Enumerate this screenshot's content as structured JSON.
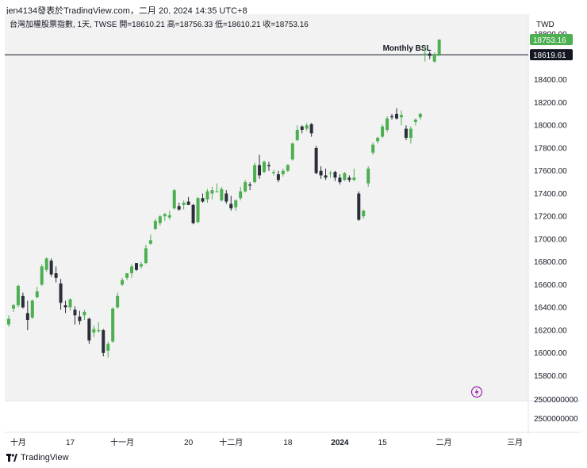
{
  "header": {
    "title": "jen4134發表於TradingView.com，二月 20, 2024 14:35 UTC+8"
  },
  "footer": {
    "brand": "TradingView",
    "icon": "tradingview-logo-icon"
  },
  "chart_data": {
    "type": "candlestick",
    "legend": "台灣加權股票指數, 1天, TWSE  開=18610.21  高=18756.33  低=18610.21  收=18753.16",
    "currency_label": "TWD",
    "ylim": [
      15650,
      18920
    ],
    "y_ticks": [
      15800,
      16000,
      16200,
      16400,
      16600,
      16800,
      17000,
      17200,
      17400,
      17600,
      17800,
      18000,
      18200,
      18400,
      18600,
      18800
    ],
    "y_tick_labels": [
      "15800.00",
      "16000.00",
      "16200.00",
      "16400.00",
      "16600.00",
      "16800.00",
      "17000.00",
      "17200.00",
      "17400.00",
      "17600.00",
      "17800.00",
      "18000.00",
      "18200.00",
      "18400.00",
      "18600.00",
      "18800.00"
    ],
    "x_tick_labels": [
      {
        "label": "十月",
        "i": 2
      },
      {
        "label": "17",
        "i": 13
      },
      {
        "label": "十一月",
        "i": 24
      },
      {
        "label": "20",
        "i": 38
      },
      {
        "label": "十二月",
        "i": 47
      },
      {
        "label": "18",
        "i": 59
      },
      {
        "label": "2024",
        "i": 70
      },
      {
        "label": "15",
        "i": 79
      },
      {
        "label": "二月",
        "i": 92
      },
      {
        "label": "三月",
        "i": 107
      }
    ],
    "volume_labels": [
      "2500000000",
      "2500000000"
    ],
    "price_tags": [
      {
        "value": 18753.16,
        "label": "18753.16",
        "color": "#4caf50"
      },
      {
        "value": 18619.61,
        "label": "18619.61",
        "color": "#131722"
      }
    ],
    "level_line": {
      "value": 18619.61,
      "label": "Monthly BSL"
    },
    "up_color": "#4caf50",
    "down_color": "#2a2e39",
    "candles": [
      {
        "o": 16250,
        "h": 16330,
        "l": 16230,
        "c": 16300
      },
      {
        "o": 16390,
        "h": 16430,
        "l": 16360,
        "c": 16420
      },
      {
        "o": 16420,
        "h": 16600,
        "l": 16400,
        "c": 16590
      },
      {
        "o": 16500,
        "h": 16530,
        "l": 16390,
        "c": 16400
      },
      {
        "o": 16350,
        "h": 16460,
        "l": 16200,
        "c": 16290
      },
      {
        "o": 16310,
        "h": 16470,
        "l": 16300,
        "c": 16460
      },
      {
        "o": 16490,
        "h": 16580,
        "l": 16480,
        "c": 16540
      },
      {
        "o": 16600,
        "h": 16780,
        "l": 16590,
        "c": 16760
      },
      {
        "o": 16730,
        "h": 16840,
        "l": 16710,
        "c": 16830
      },
      {
        "o": 16810,
        "h": 16830,
        "l": 16670,
        "c": 16690
      },
      {
        "o": 16700,
        "h": 16760,
        "l": 16620,
        "c": 16660
      },
      {
        "o": 16610,
        "h": 16650,
        "l": 16380,
        "c": 16440
      },
      {
        "o": 16420,
        "h": 16460,
        "l": 16350,
        "c": 16400
      },
      {
        "o": 16400,
        "h": 16480,
        "l": 16370,
        "c": 16470
      },
      {
        "o": 16380,
        "h": 16410,
        "l": 16250,
        "c": 16330
      },
      {
        "o": 16320,
        "h": 16370,
        "l": 16250,
        "c": 16280
      },
      {
        "o": 16330,
        "h": 16380,
        "l": 16290,
        "c": 16360
      },
      {
        "o": 16300,
        "h": 16310,
        "l": 16080,
        "c": 16110
      },
      {
        "o": 16180,
        "h": 16240,
        "l": 16140,
        "c": 16210
      },
      {
        "o": 16190,
        "h": 16270,
        "l": 16180,
        "c": 16200
      },
      {
        "o": 16200,
        "h": 16210,
        "l": 15970,
        "c": 16000
      },
      {
        "o": 16020,
        "h": 16100,
        "l": 15960,
        "c": 16080
      },
      {
        "o": 16100,
        "h": 16400,
        "l": 16090,
        "c": 16390
      },
      {
        "o": 16400,
        "h": 16530,
        "l": 16390,
        "c": 16500
      },
      {
        "o": 16600,
        "h": 16660,
        "l": 16590,
        "c": 16640
      },
      {
        "o": 16660,
        "h": 16700,
        "l": 16640,
        "c": 16700
      },
      {
        "o": 16700,
        "h": 16780,
        "l": 16660,
        "c": 16760
      },
      {
        "o": 16790,
        "h": 16790,
        "l": 16720,
        "c": 16730
      },
      {
        "o": 16760,
        "h": 16800,
        "l": 16740,
        "c": 16780
      },
      {
        "o": 16790,
        "h": 16950,
        "l": 16780,
        "c": 16920
      },
      {
        "o": 16960,
        "h": 17040,
        "l": 16950,
        "c": 16990
      },
      {
        "o": 17090,
        "h": 17180,
        "l": 17080,
        "c": 17160
      },
      {
        "o": 17140,
        "h": 17210,
        "l": 17120,
        "c": 17200
      },
      {
        "o": 17200,
        "h": 17230,
        "l": 17160,
        "c": 17220
      },
      {
        "o": 17190,
        "h": 17250,
        "l": 17170,
        "c": 17210
      },
      {
        "o": 17270,
        "h": 17440,
        "l": 17260,
        "c": 17430
      },
      {
        "o": 17290,
        "h": 17320,
        "l": 17250,
        "c": 17260
      },
      {
        "o": 17300,
        "h": 17340,
        "l": 17260,
        "c": 17320
      },
      {
        "o": 17330,
        "h": 17370,
        "l": 17300,
        "c": 17300
      },
      {
        "o": 17300,
        "h": 17310,
        "l": 17130,
        "c": 17140
      },
      {
        "o": 17150,
        "h": 17370,
        "l": 17140,
        "c": 17360
      },
      {
        "o": 17360,
        "h": 17400,
        "l": 17320,
        "c": 17330
      },
      {
        "o": 17350,
        "h": 17440,
        "l": 17320,
        "c": 17420
      },
      {
        "o": 17400,
        "h": 17460,
        "l": 17350,
        "c": 17430
      },
      {
        "o": 17420,
        "h": 17490,
        "l": 17410,
        "c": 17420
      },
      {
        "o": 17340,
        "h": 17460,
        "l": 17330,
        "c": 17440
      },
      {
        "o": 17400,
        "h": 17430,
        "l": 17310,
        "c": 17330
      },
      {
        "o": 17310,
        "h": 17380,
        "l": 17250,
        "c": 17270
      },
      {
        "o": 17280,
        "h": 17350,
        "l": 17250,
        "c": 17340
      },
      {
        "o": 17360,
        "h": 17460,
        "l": 17340,
        "c": 17420
      },
      {
        "o": 17420,
        "h": 17520,
        "l": 17410,
        "c": 17500
      },
      {
        "o": 17480,
        "h": 17500,
        "l": 17430,
        "c": 17470
      },
      {
        "o": 17500,
        "h": 17670,
        "l": 17490,
        "c": 17650
      },
      {
        "o": 17650,
        "h": 17740,
        "l": 17530,
        "c": 17560
      },
      {
        "o": 17590,
        "h": 17690,
        "l": 17580,
        "c": 17680
      },
      {
        "o": 17650,
        "h": 17680,
        "l": 17600,
        "c": 17640
      },
      {
        "o": 17580,
        "h": 17610,
        "l": 17560,
        "c": 17590
      },
      {
        "o": 17570,
        "h": 17600,
        "l": 17500,
        "c": 17520
      },
      {
        "o": 17570,
        "h": 17620,
        "l": 17550,
        "c": 17600
      },
      {
        "o": 17600,
        "h": 17660,
        "l": 17590,
        "c": 17650
      },
      {
        "o": 17700,
        "h": 17850,
        "l": 17690,
        "c": 17840
      },
      {
        "o": 17870,
        "h": 18000,
        "l": 17860,
        "c": 17960
      },
      {
        "o": 17990,
        "h": 18000,
        "l": 17930,
        "c": 17960
      },
      {
        "o": 17970,
        "h": 18020,
        "l": 17950,
        "c": 18000
      },
      {
        "o": 18010,
        "h": 18020,
        "l": 17900,
        "c": 17930
      },
      {
        "o": 17800,
        "h": 17820,
        "l": 17570,
        "c": 17580
      },
      {
        "o": 17600,
        "h": 17640,
        "l": 17530,
        "c": 17560
      },
      {
        "o": 17560,
        "h": 17620,
        "l": 17520,
        "c": 17540
      },
      {
        "o": 17580,
        "h": 17600,
        "l": 17540,
        "c": 17580
      },
      {
        "o": 17590,
        "h": 17600,
        "l": 17510,
        "c": 17540
      },
      {
        "o": 17540,
        "h": 17570,
        "l": 17480,
        "c": 17500
      },
      {
        "o": 17520,
        "h": 17590,
        "l": 17510,
        "c": 17580
      },
      {
        "o": 17540,
        "h": 17560,
        "l": 17500,
        "c": 17520
      },
      {
        "o": 17520,
        "h": 17620,
        "l": 17510,
        "c": 17540
      },
      {
        "o": 17400,
        "h": 17420,
        "l": 17160,
        "c": 17170
      },
      {
        "o": 17200,
        "h": 17260,
        "l": 17180,
        "c": 17250
      },
      {
        "o": 17490,
        "h": 17640,
        "l": 17460,
        "c": 17620
      },
      {
        "o": 17760,
        "h": 17850,
        "l": 17740,
        "c": 17830
      },
      {
        "o": 17860,
        "h": 17900,
        "l": 17840,
        "c": 17890
      },
      {
        "o": 17900,
        "h": 18010,
        "l": 17890,
        "c": 17990
      },
      {
        "o": 17960,
        "h": 18080,
        "l": 17940,
        "c": 18060
      },
      {
        "o": 18080,
        "h": 18100,
        "l": 18050,
        "c": 18070
      },
      {
        "o": 18100,
        "h": 18150,
        "l": 18050,
        "c": 18060
      },
      {
        "o": 18070,
        "h": 18130,
        "l": 18000,
        "c": 18090
      },
      {
        "o": 17970,
        "h": 18000,
        "l": 17870,
        "c": 17890
      },
      {
        "o": 17890,
        "h": 17990,
        "l": 17840,
        "c": 17970
      },
      {
        "o": 18030,
        "h": 18060,
        "l": 18000,
        "c": 18050
      },
      {
        "o": 18070,
        "h": 18110,
        "l": 18050,
        "c": 18100
      },
      {
        "o": 18620,
        "h": 18700,
        "l": 18560,
        "c": 18630
      },
      {
        "o": 18630,
        "h": 18650,
        "l": 18580,
        "c": 18610
      },
      {
        "o": 18560,
        "h": 18640,
        "l": 18550,
        "c": 18620
      },
      {
        "o": 18610.21,
        "h": 18756.33,
        "l": 18610.21,
        "c": 18753.16
      }
    ]
  }
}
